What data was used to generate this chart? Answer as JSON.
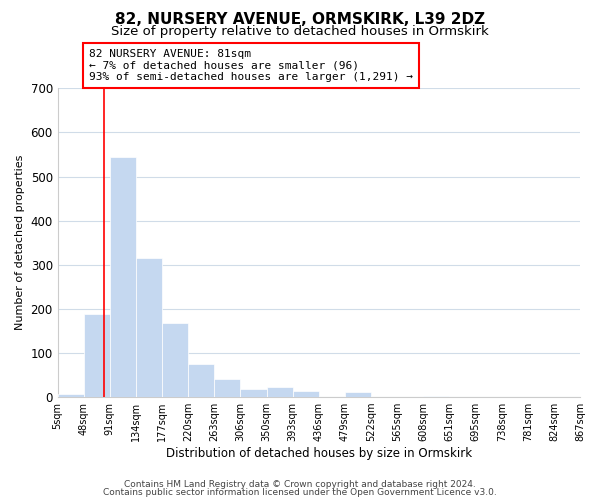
{
  "title": "82, NURSERY AVENUE, ORMSKIRK, L39 2DZ",
  "subtitle": "Size of property relative to detached houses in Ormskirk",
  "xlabel": "Distribution of detached houses by size in Ormskirk",
  "ylabel": "Number of detached properties",
  "bin_edges": [
    5,
    48,
    91,
    134,
    177,
    220,
    263,
    306,
    350,
    393,
    436,
    479,
    522,
    565,
    608,
    651,
    695,
    738,
    781,
    824,
    867
  ],
  "bar_heights": [
    8,
    188,
    545,
    315,
    168,
    75,
    42,
    18,
    22,
    14,
    0,
    12,
    0,
    0,
    3,
    0,
    0,
    0,
    0,
    0
  ],
  "bar_color": "#c5d8f0",
  "property_line_x": 81,
  "ylim": [
    0,
    700
  ],
  "yticks": [
    0,
    100,
    200,
    300,
    400,
    500,
    600,
    700
  ],
  "annotation_box_text": "82 NURSERY AVENUE: 81sqm\n← 7% of detached houses are smaller (96)\n93% of semi-detached houses are larger (1,291) →",
  "footer_line1": "Contains HM Land Registry data © Crown copyright and database right 2024.",
  "footer_line2": "Contains public sector information licensed under the Open Government Licence v3.0.",
  "title_fontsize": 11,
  "subtitle_fontsize": 9.5,
  "tick_label_fontsize": 7,
  "ylabel_fontsize": 8,
  "xlabel_fontsize": 8.5,
  "annotation_fontsize": 8,
  "background_color": "#ffffff",
  "grid_color": "#d0dce8",
  "footer_fontsize": 6.5
}
